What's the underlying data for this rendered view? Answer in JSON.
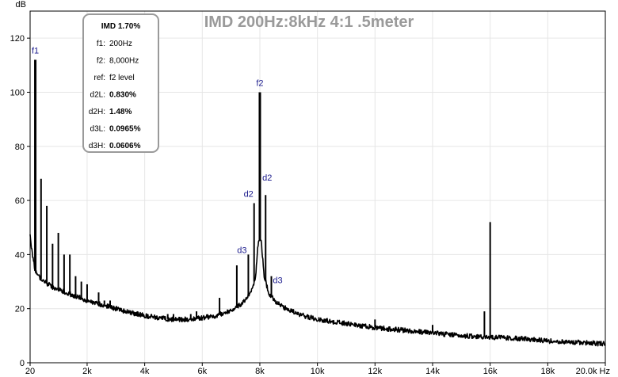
{
  "chart_data": {
    "type": "line",
    "title": "IMD 200Hz:8kHz 4:1 .5meter",
    "ylabel": "dB",
    "xlabel": "",
    "xlim": [
      20,
      20000
    ],
    "ylim": [
      0,
      130
    ],
    "x_ticks": [
      20,
      2000,
      4000,
      6000,
      8000,
      10000,
      12000,
      14000,
      16000,
      18000,
      20000
    ],
    "x_tick_labels": [
      "20",
      "2k",
      "4k",
      "6k",
      "8k",
      "10k",
      "12k",
      "14k",
      "16k",
      "18k",
      "20.0k Hz"
    ],
    "y_ticks": [
      0,
      20,
      40,
      60,
      80,
      100,
      120
    ],
    "y_tick_labels": [
      "0",
      "20",
      "40",
      "60",
      "80",
      "100",
      "120"
    ],
    "grid": true,
    "colors": {
      "line": "#000000",
      "title": "#9a9a9a",
      "annotation": "#1a1a8c",
      "grid": "#e6e6e6",
      "box_border": "#9a9a9a"
    },
    "noise_floor": [
      [
        20,
        47
      ],
      [
        100,
        40
      ],
      [
        200,
        34
      ],
      [
        300,
        32
      ],
      [
        500,
        30
      ],
      [
        800,
        28
      ],
      [
        1000,
        27
      ],
      [
        1500,
        25
      ],
      [
        2000,
        23
      ],
      [
        2500,
        21.5
      ],
      [
        3000,
        20
      ],
      [
        3500,
        18.5
      ],
      [
        4000,
        17.5
      ],
      [
        4500,
        16.5
      ],
      [
        5000,
        16
      ],
      [
        5500,
        16
      ],
      [
        6000,
        16.5
      ],
      [
        6500,
        17.5
      ],
      [
        7000,
        19.5
      ],
      [
        7400,
        22
      ],
      [
        7700,
        26
      ],
      [
        7850,
        32
      ],
      [
        7950,
        45
      ],
      [
        8050,
        45
      ],
      [
        8150,
        32
      ],
      [
        8300,
        26
      ],
      [
        8600,
        22
      ],
      [
        9000,
        19.5
      ],
      [
        9500,
        17.5
      ],
      [
        10000,
        16
      ],
      [
        11000,
        14.5
      ],
      [
        12000,
        13
      ],
      [
        13000,
        12
      ],
      [
        14000,
        11
      ],
      [
        15000,
        10
      ],
      [
        16000,
        9.5
      ],
      [
        17000,
        9
      ],
      [
        18000,
        8
      ],
      [
        19000,
        7.5
      ],
      [
        20000,
        7
      ]
    ],
    "peaks": [
      {
        "x": 200,
        "y": 112
      },
      {
        "x": 400,
        "y": 68
      },
      {
        "x": 600,
        "y": 58
      },
      {
        "x": 800,
        "y": 44
      },
      {
        "x": 1000,
        "y": 48
      },
      {
        "x": 1200,
        "y": 40
      },
      {
        "x": 1400,
        "y": 40
      },
      {
        "x": 1600,
        "y": 32
      },
      {
        "x": 1800,
        "y": 30
      },
      {
        "x": 2000,
        "y": 29
      },
      {
        "x": 2400,
        "y": 26
      },
      {
        "x": 2600,
        "y": 23
      },
      {
        "x": 2800,
        "y": 23
      },
      {
        "x": 4800,
        "y": 18
      },
      {
        "x": 5000,
        "y": 18
      },
      {
        "x": 5200,
        "y": 17
      },
      {
        "x": 5600,
        "y": 18
      },
      {
        "x": 5800,
        "y": 19
      },
      {
        "x": 6600,
        "y": 24
      },
      {
        "x": 7200,
        "y": 36
      },
      {
        "x": 7600,
        "y": 40
      },
      {
        "x": 7800,
        "y": 59
      },
      {
        "x": 8000,
        "y": 100
      },
      {
        "x": 8200,
        "y": 62
      },
      {
        "x": 8400,
        "y": 32
      },
      {
        "x": 12000,
        "y": 16
      },
      {
        "x": 14000,
        "y": 14
      },
      {
        "x": 15800,
        "y": 19
      },
      {
        "x": 16000,
        "y": 52
      }
    ],
    "annotations": [
      {
        "label": "f1",
        "x": 200,
        "y": 112
      },
      {
        "label": "f2",
        "x": 8000,
        "y": 100
      },
      {
        "label": "d2",
        "x": 7800,
        "y": 59
      },
      {
        "label": "d2",
        "x": 8200,
        "y": 62
      },
      {
        "label": "d3",
        "x": 7600,
        "y": 40
      },
      {
        "label": "d3",
        "x": 8400,
        "y": 32
      }
    ],
    "info_box": {
      "header": "IMD 1.70%",
      "rows": [
        {
          "label": "f1:",
          "value": "200Hz",
          "bold": false
        },
        {
          "label": "f2:",
          "value": "8,000Hz",
          "bold": false
        },
        {
          "label": "ref:",
          "value": "f2 level",
          "bold": false
        },
        {
          "label": "d2L:",
          "value": "0.830%",
          "bold": true
        },
        {
          "label": "d2H:",
          "value": "1.48%",
          "bold": true
        },
        {
          "label": "d3L:",
          "value": "0.0965%",
          "bold": true
        },
        {
          "label": "d3H:",
          "value": "0.0606%",
          "bold": true
        }
      ]
    }
  }
}
